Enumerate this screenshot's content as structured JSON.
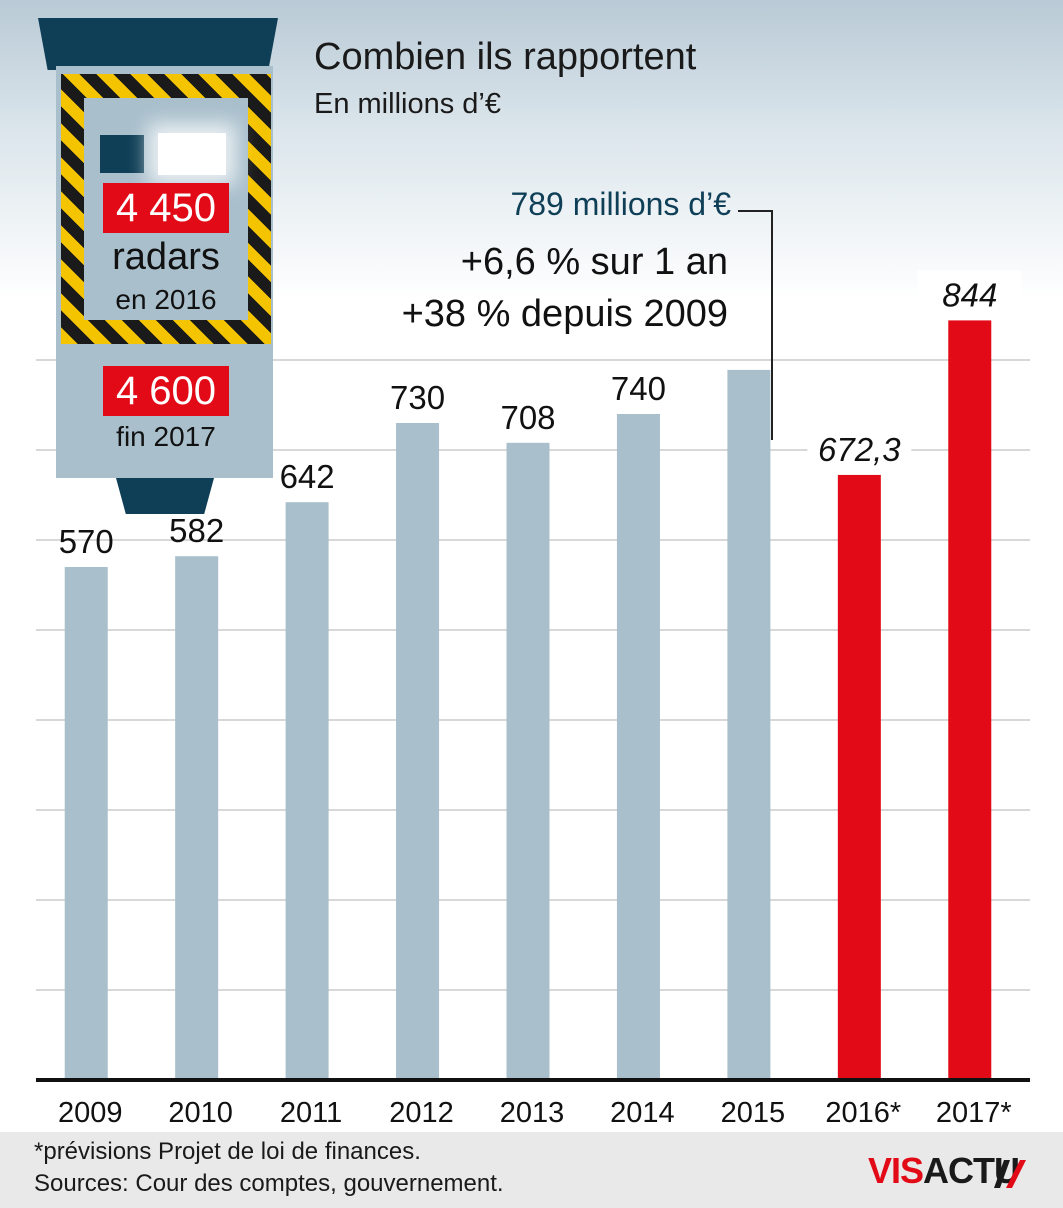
{
  "title": "Combien ils rapportent",
  "subtitle": "En millions d’€",
  "callout": {
    "value": "789 millions d’€",
    "line1": "+6,6 % sur 1 an",
    "line2": "+38 % depuis 2009"
  },
  "radar": {
    "count_2016": "4 450",
    "word": "radars",
    "year_2016": "en 2016",
    "count_2017": "4 600",
    "year_2017": "fin 2017"
  },
  "footer": {
    "note": "*prévisions Projet de loi de finances.",
    "source": "Sources: Cour des comptes, gouvernement.",
    "logo_part1": "VIS",
    "logo_part2": "ACTU"
  },
  "colors": {
    "actual": "#a9bfcc",
    "forecast": "#e20a17",
    "grid": "#b0b0b0",
    "axis": "#111111"
  },
  "chart_data": {
    "type": "bar",
    "title": "Combien ils rapportent",
    "subtitle": "En millions d’€",
    "categories": [
      "2009",
      "2010",
      "2011",
      "2012",
      "2013",
      "2014",
      "2015",
      "2016*",
      "2017*"
    ],
    "values": [
      570,
      582,
      642,
      730,
      708,
      740,
      789,
      672.3,
      844
    ],
    "labels": [
      "570",
      "582",
      "642",
      "730",
      "708",
      "740",
      "",
      "672,3",
      "844"
    ],
    "forecast": [
      false,
      false,
      false,
      false,
      false,
      false,
      false,
      true,
      true
    ],
    "ylim": [
      0,
      900
    ],
    "grid": true,
    "gridlines": [
      100,
      200,
      300,
      400,
      500,
      600,
      700,
      800
    ]
  }
}
